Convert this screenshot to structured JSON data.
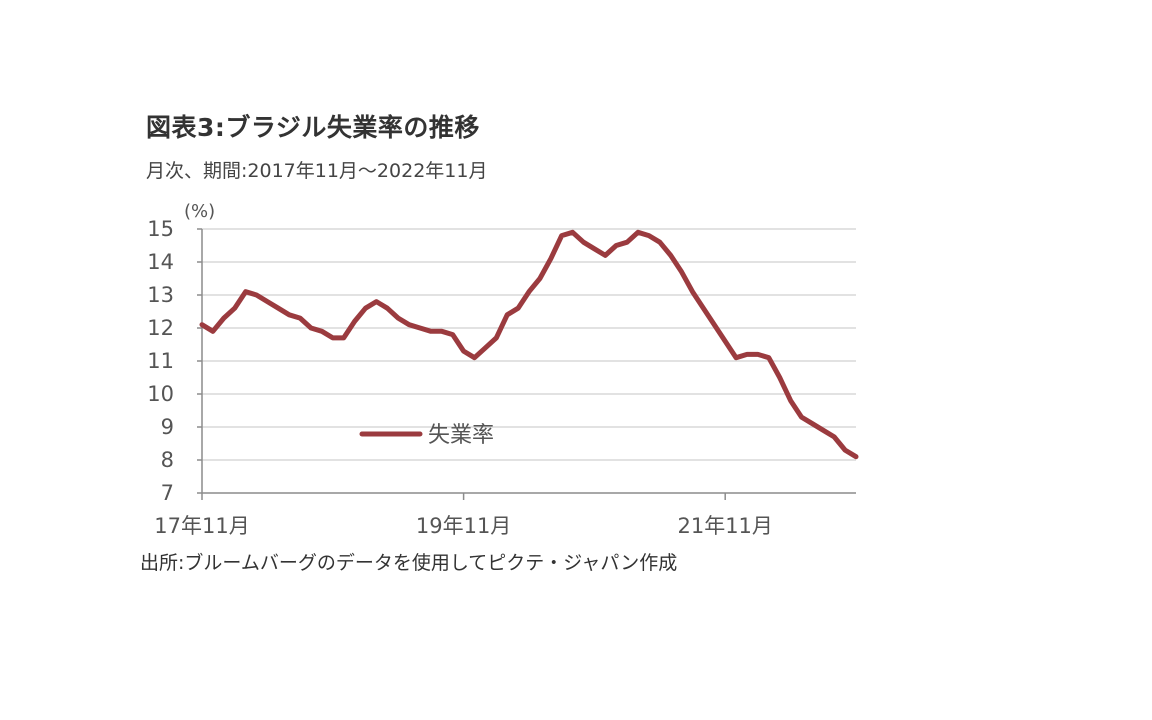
{
  "header": {
    "title": "図表3:ブラジル失業率の推移",
    "subtitle": "月次、期間:2017年11月〜2022年11月"
  },
  "footer": {
    "source": "出所:ブルームバーグのデータを使用してピクテ・ジャパン作成"
  },
  "colors": {
    "line": "#9b3b3f",
    "grid": "#d9d9d9",
    "axis": "#8c8c8c"
  },
  "chart_data": {
    "type": "line",
    "title": "図表3:ブラジル失業率の推移",
    "subtitle": "月次、期間:2017年11月〜2022年11月",
    "ylabel": "(%)",
    "ylim": [
      7,
      15
    ],
    "yticks": [
      7,
      8,
      9,
      10,
      11,
      12,
      13,
      14,
      15
    ],
    "xlim": [
      "2017-11",
      "2022-11"
    ],
    "xticks": [
      {
        "x": "2017-11",
        "label": "17年11月"
      },
      {
        "x": "2019-11",
        "label": "19年11月"
      },
      {
        "x": "2021-11",
        "label": "21年11月"
      }
    ],
    "grid": true,
    "legend": "center",
    "series": [
      {
        "name": "失業率",
        "x": [
          "2017-11",
          "2017-12",
          "2018-01",
          "2018-02",
          "2018-03",
          "2018-04",
          "2018-05",
          "2018-06",
          "2018-07",
          "2018-08",
          "2018-09",
          "2018-10",
          "2018-11",
          "2018-12",
          "2019-01",
          "2019-02",
          "2019-03",
          "2019-04",
          "2019-05",
          "2019-06",
          "2019-07",
          "2019-08",
          "2019-09",
          "2019-10",
          "2019-11",
          "2019-12",
          "2020-01",
          "2020-02",
          "2020-03",
          "2020-04",
          "2020-05",
          "2020-06",
          "2020-07",
          "2020-08",
          "2020-09",
          "2020-10",
          "2020-11",
          "2020-12",
          "2021-01",
          "2021-02",
          "2021-03",
          "2021-04",
          "2021-05",
          "2021-06",
          "2021-07",
          "2021-08",
          "2021-09",
          "2021-10",
          "2021-11",
          "2021-12",
          "2022-01",
          "2022-02",
          "2022-03",
          "2022-04",
          "2022-05",
          "2022-06",
          "2022-07",
          "2022-08",
          "2022-09",
          "2022-10",
          "2022-11"
        ],
        "values": [
          12.1,
          11.9,
          12.3,
          12.6,
          13.1,
          13.0,
          12.8,
          12.6,
          12.4,
          12.3,
          12.0,
          11.9,
          11.7,
          11.7,
          12.2,
          12.6,
          12.8,
          12.6,
          12.3,
          12.1,
          12.0,
          11.9,
          11.9,
          11.8,
          11.3,
          11.1,
          11.4,
          11.7,
          12.4,
          12.6,
          13.1,
          13.5,
          14.1,
          14.8,
          14.9,
          14.6,
          14.4,
          14.2,
          14.5,
          14.6,
          14.9,
          14.8,
          14.6,
          14.2,
          13.7,
          13.1,
          12.6,
          12.1,
          11.6,
          11.1,
          11.2,
          11.2,
          11.1,
          10.5,
          9.8,
          9.3,
          9.1,
          8.9,
          8.7,
          8.3,
          8.1
        ]
      }
    ]
  }
}
